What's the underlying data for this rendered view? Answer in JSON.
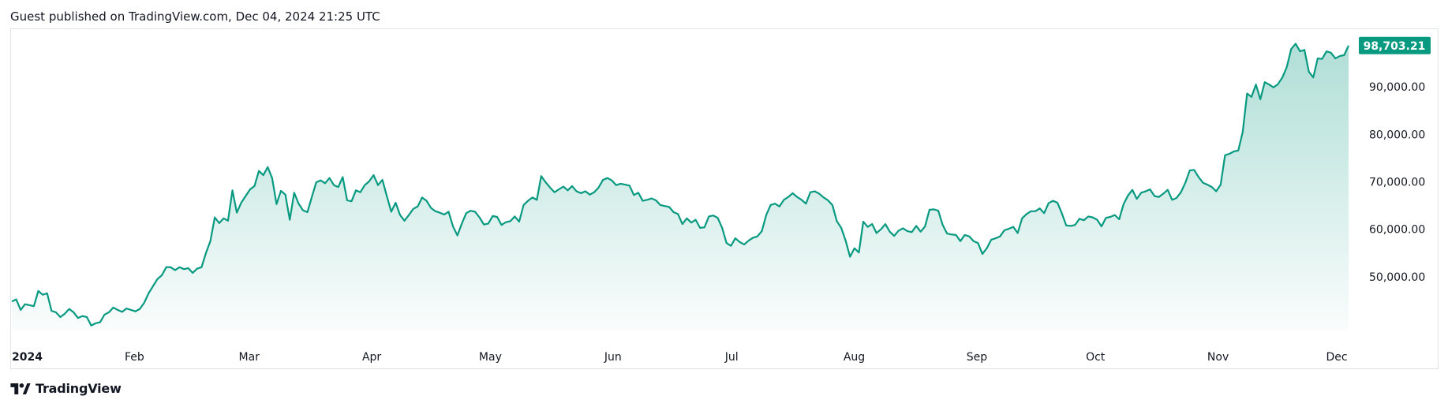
{
  "header": {
    "caption": "Guest published on TradingView.com, Dec 04, 2024 21:25 UTC"
  },
  "footer": {
    "brand_name": "TradingView",
    "logo_icon": "tradingview-logo-icon"
  },
  "colors": {
    "line": "#089981",
    "fill_top": "#089981",
    "price_badge": "#089981",
    "border": "#e0e3eb",
    "text": "#131722"
  },
  "chart_data": {
    "type": "area",
    "series": [
      {
        "values": [
          44800,
          45200,
          43000,
          44200,
          44000,
          43800,
          47000,
          46200,
          46500,
          42800,
          42500,
          41500,
          42200,
          43200,
          42500,
          41300,
          41700,
          41500,
          39700,
          40200,
          40400,
          42000,
          42500,
          43500,
          43000,
          42600,
          43300,
          43000,
          42700,
          43200,
          44500,
          46500,
          48000,
          49500,
          50300,
          52000,
          52000,
          51400,
          52000,
          51600,
          51800,
          50800,
          51700,
          52000,
          55000,
          57500,
          62500,
          61300,
          62300,
          61800,
          68200,
          63500,
          65600,
          67000,
          68400,
          69100,
          72300,
          71400,
          73100,
          70800,
          65300,
          68100,
          67300,
          62000,
          67700,
          65400,
          64000,
          63600,
          66800,
          69900,
          70300,
          69700,
          70800,
          69300,
          68900,
          71000,
          66100,
          65900,
          68200,
          67800,
          69300,
          70100,
          71400,
          69300,
          70400,
          67000,
          63700,
          65600,
          63000,
          61800,
          63000,
          64300,
          64800,
          66700,
          66000,
          64500,
          63800,
          63500,
          63100,
          63700,
          60600,
          58700,
          61200,
          63400,
          63900,
          63700,
          62500,
          61000,
          61200,
          62800,
          62600,
          60900,
          61500,
          61700,
          62700,
          61600,
          65100,
          66000,
          66700,
          66200,
          71200,
          69900,
          68800,
          67800,
          68400,
          69000,
          68200,
          69100,
          68000,
          67600,
          68000,
          67300,
          67800,
          68800,
          70400,
          70800,
          70300,
          69300,
          69600,
          69400,
          69200,
          67200,
          67700,
          66000,
          66200,
          66500,
          66100,
          65100,
          64900,
          64700,
          63600,
          63200,
          61100,
          62300,
          61400,
          62000,
          60300,
          60400,
          62700,
          62900,
          62400,
          60300,
          57100,
          56500,
          58100,
          57300,
          56800,
          57600,
          58200,
          58500,
          59600,
          63000,
          65100,
          65400,
          64800,
          66200,
          66800,
          67600,
          66800,
          66200,
          65400,
          67800,
          68000,
          67500,
          66700,
          66100,
          65100,
          61700,
          60300,
          57600,
          54200,
          56000,
          55100,
          61600,
          60500,
          61100,
          59200,
          60000,
          61100,
          59500,
          58600,
          59700,
          60200,
          59600,
          59400,
          60700,
          59500,
          60600,
          64100,
          64200,
          63900,
          60900,
          59100,
          58900,
          58800,
          57500,
          58800,
          58500,
          57500,
          57100,
          54800,
          56000,
          57800,
          58100,
          58500,
          59800,
          60100,
          60500,
          59200,
          62300,
          63200,
          63800,
          63800,
          64400,
          63400,
          65500,
          66000,
          65600,
          63400,
          60800,
          60700,
          60900,
          62200,
          61900,
          62700,
          62500,
          62000,
          60600,
          62400,
          62600,
          63000,
          62100,
          65300,
          67100,
          68300,
          66400,
          67700,
          68000,
          68400,
          67000,
          66800,
          67500,
          68300,
          66200,
          66600,
          67800,
          69800,
          72400,
          72500,
          71000,
          69800,
          69400,
          68900,
          68000,
          69400,
          75600,
          75900,
          76400,
          76600,
          80500,
          88600,
          87900,
          90500,
          87400,
          91000,
          90500,
          89900,
          90600,
          92000,
          94200,
          98000,
          99100,
          97500,
          97800,
          93200,
          92000,
          96000,
          95900,
          97500,
          97200,
          96000,
          96500,
          96700,
          98703
        ]
      }
    ],
    "x_tick_labels": [
      "2024",
      "Feb",
      "Mar",
      "Apr",
      "May",
      "Jun",
      "Jul",
      "Aug",
      "Sep",
      "Oct",
      "Nov",
      "Dec"
    ],
    "y_tick_labels": [
      "90,000.00",
      "80,000.00",
      "70,000.00",
      "60,000.00",
      "50,000.00"
    ],
    "y_ticks": [
      90000,
      80000,
      70000,
      60000,
      50000
    ],
    "x_range": [
      "2024-01-01",
      "2024-12-04"
    ],
    "ylim": [
      38500,
      101000
    ],
    "last_price": 98703.21,
    "last_price_label": "98,703.21",
    "grid": false,
    "legend": "none"
  }
}
